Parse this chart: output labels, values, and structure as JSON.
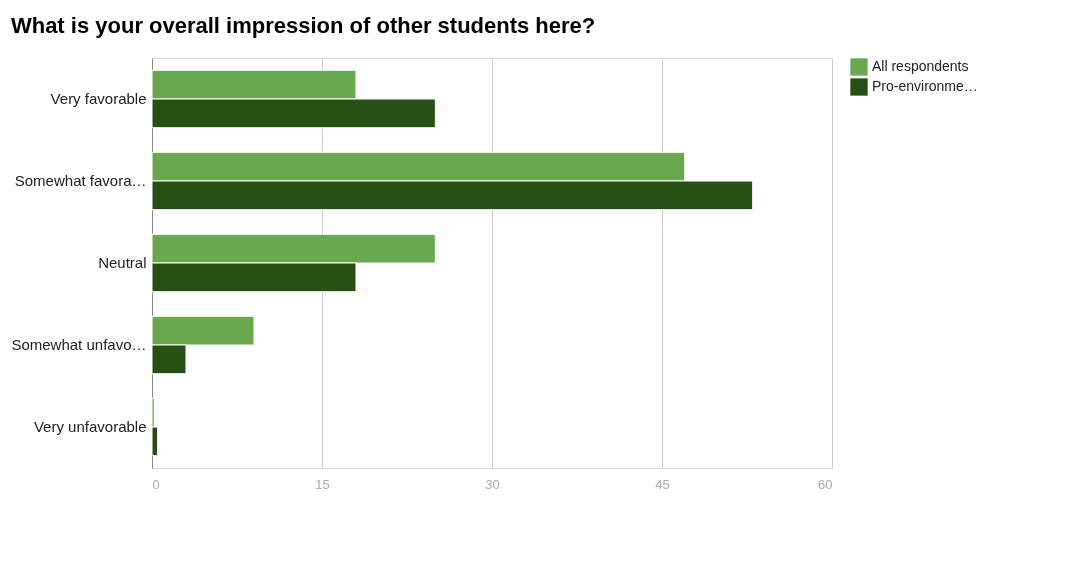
{
  "chart_data": {
    "type": "bar",
    "orientation": "horizontal",
    "title": "What is your overall impression of other students here?",
    "categories": [
      "Very favorable",
      "Somewhat favora…",
      "Neutral",
      "Somewhat unfavo…",
      "Very unfavorable"
    ],
    "series": [
      {
        "name": "All respondents",
        "color": "#6aa84f",
        "values": [
          18,
          47,
          25,
          9,
          0.2
        ]
      },
      {
        "name": "Pro-environme…",
        "color": "#274e13",
        "values": [
          25,
          53,
          18,
          3,
          0.5
        ]
      }
    ],
    "xlim": [
      0,
      60
    ],
    "xticks": [
      0,
      15,
      30,
      45,
      60
    ],
    "grid": "x",
    "legend": "top right"
  }
}
